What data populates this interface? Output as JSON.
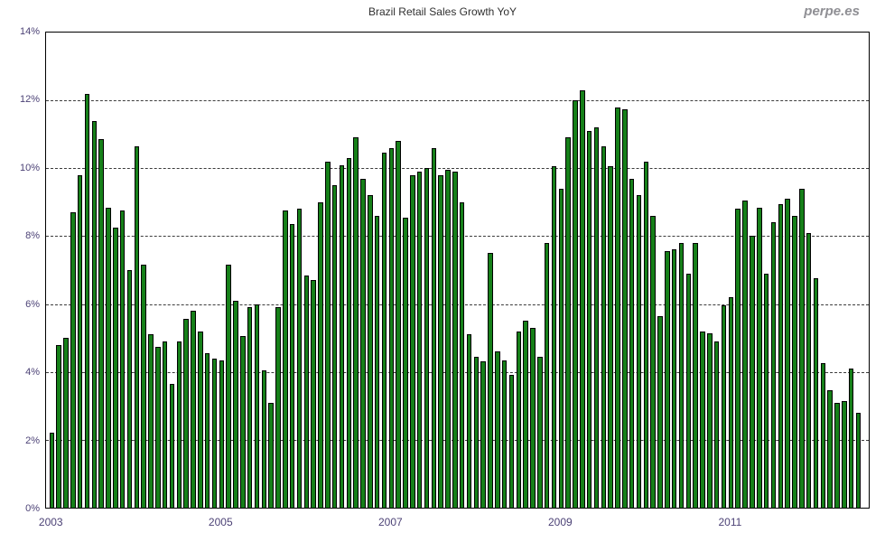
{
  "header": {
    "watermark": "perpe.es"
  },
  "chart_data": {
    "type": "bar",
    "title": "Brazil Retail Sales Growth YoY",
    "unit": "%",
    "start_month": "2003-01",
    "frequency": "monthly",
    "ylim": [
      0,
      14
    ],
    "y_ticks": [
      0,
      2,
      4,
      6,
      8,
      10,
      12,
      14
    ],
    "y_tick_labels": [
      "0%",
      "2%",
      "4%",
      "6%",
      "8%",
      "10%",
      "12%",
      "14%"
    ],
    "grid": "horizontal dashed at every 2%",
    "legend": "none",
    "bar_color": "#168019",
    "bar_border_color": "#000000",
    "x_ticks": [
      {
        "label": "2003",
        "month_index": 0
      },
      {
        "label": "2005",
        "month_index": 24
      },
      {
        "label": "2007",
        "month_index": 48
      },
      {
        "label": "2009",
        "month_index": 72
      },
      {
        "label": "2011",
        "month_index": 96
      }
    ],
    "values": [
      2.2,
      4.8,
      5.0,
      8.7,
      9.8,
      12.2,
      11.4,
      10.85,
      8.85,
      8.25,
      8.75,
      7.0,
      10.65,
      7.15,
      5.1,
      4.75,
      4.9,
      3.65,
      4.9,
      5.55,
      5.8,
      5.2,
      4.55,
      4.4,
      4.35,
      7.15,
      6.1,
      5.05,
      5.9,
      6.0,
      4.05,
      3.1,
      5.9,
      8.75,
      8.35,
      8.8,
      6.85,
      6.7,
      9.0,
      10.2,
      9.5,
      10.1,
      10.3,
      10.9,
      9.7,
      9.2,
      8.6,
      10.45,
      10.6,
      10.8,
      8.55,
      9.8,
      9.9,
      10.0,
      10.6,
      9.8,
      9.95,
      9.9,
      9.0,
      5.1,
      4.45,
      4.3,
      7.5,
      4.6,
      4.35,
      3.9,
      5.2,
      5.5,
      5.3,
      4.45,
      7.8,
      10.05,
      9.4,
      10.9,
      12.0,
      12.3,
      11.1,
      11.2,
      10.65,
      10.05,
      11.8,
      11.75,
      9.7,
      9.2,
      10.2,
      8.6,
      5.65,
      7.55,
      7.6,
      7.8,
      6.9,
      7.8,
      5.2,
      5.15,
      4.9,
      5.95,
      6.2,
      8.8,
      9.05,
      8.0,
      8.85,
      6.9,
      8.4,
      8.95,
      9.1,
      8.6,
      9.4,
      8.1,
      6.75,
      4.25,
      3.45,
      3.1,
      3.15,
      4.1,
      2.8
    ]
  }
}
